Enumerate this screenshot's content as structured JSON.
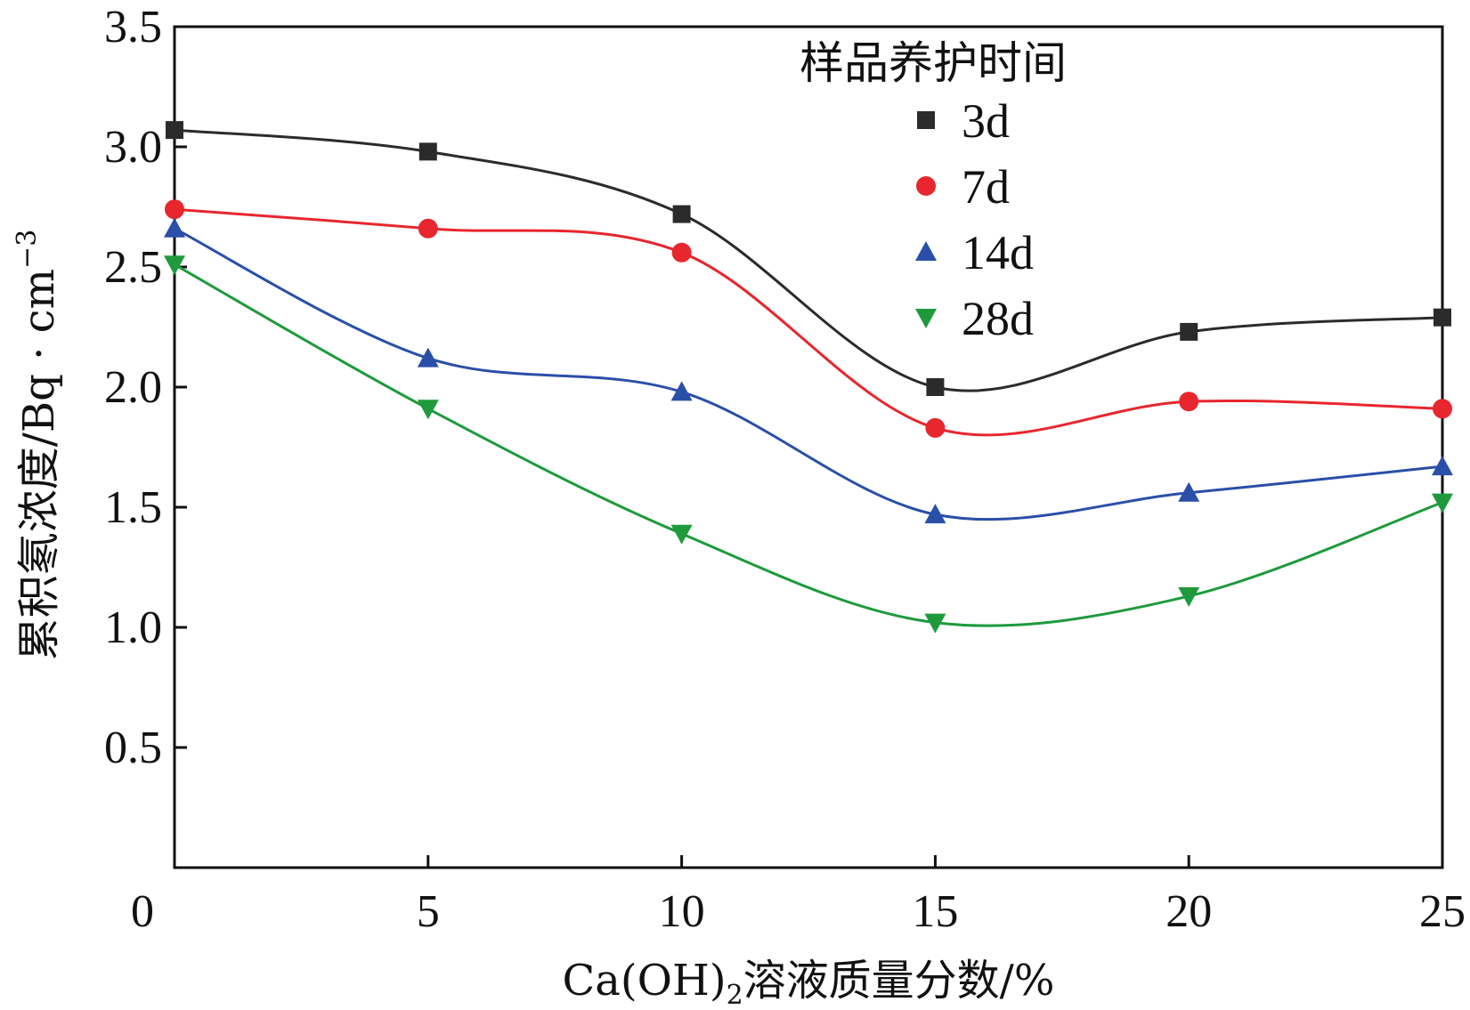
{
  "chart_data": {
    "type": "line",
    "title": "",
    "xlabel_main": "Ca(OH)",
    "xlabel_sub": "2",
    "xlabel_tail": "溶液质量分数/%",
    "ylabel": "累积氡浓度/Bq · cm",
    "ylabel_sup": "−3",
    "xlim": [
      0,
      25
    ],
    "ylim": [
      0,
      3.5
    ],
    "xticks": [
      "0",
      "5",
      "10",
      "15",
      "20",
      "25"
    ],
    "yticks": [
      "0.5",
      "1.0",
      "1.5",
      "2.0",
      "2.5",
      "3.0",
      "3.5"
    ],
    "x": [
      0,
      5,
      10,
      15,
      20,
      25
    ],
    "legend_title": "样品养护时间",
    "legend_position": "top-right",
    "series": [
      {
        "name": "3d",
        "color": "#2b2b2b",
        "marker": "square",
        "values": [
          3.07,
          2.98,
          2.72,
          2.0,
          2.23,
          2.29
        ]
      },
      {
        "name": "7d",
        "color": "#e8262e",
        "marker": "circle",
        "values": [
          2.74,
          2.66,
          2.56,
          1.83,
          1.94,
          1.91
        ]
      },
      {
        "name": "14d",
        "color": "#2a4fa8",
        "marker": "triangle-up",
        "values": [
          2.66,
          2.12,
          1.98,
          1.47,
          1.56,
          1.67
        ]
      },
      {
        "name": "28d",
        "color": "#1e9a3c",
        "marker": "triangle-down",
        "values": [
          2.51,
          1.91,
          1.39,
          1.02,
          1.13,
          1.52
        ]
      }
    ]
  }
}
